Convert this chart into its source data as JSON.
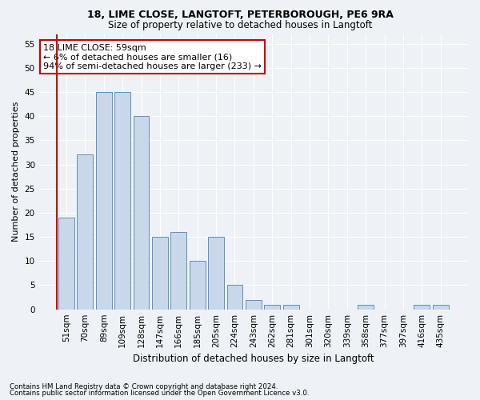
{
  "title1": "18, LIME CLOSE, LANGTOFT, PETERBOROUGH, PE6 9RA",
  "title2": "Size of property relative to detached houses in Langtoft",
  "xlabel": "Distribution of detached houses by size in Langtoft",
  "ylabel": "Number of detached properties",
  "categories": [
    "51sqm",
    "70sqm",
    "89sqm",
    "109sqm",
    "128sqm",
    "147sqm",
    "166sqm",
    "185sqm",
    "205sqm",
    "224sqm",
    "243sqm",
    "262sqm",
    "281sqm",
    "301sqm",
    "320sqm",
    "339sqm",
    "358sqm",
    "377sqm",
    "397sqm",
    "416sqm",
    "435sqm"
  ],
  "values": [
    19,
    32,
    45,
    45,
    40,
    15,
    16,
    10,
    15,
    5,
    2,
    1,
    1,
    0,
    0,
    0,
    1,
    0,
    0,
    1,
    1
  ],
  "bar_color": "#c8d8ea",
  "bar_edge_color": "#6090b8",
  "annotation_text_line1": "18 LIME CLOSE: 59sqm",
  "annotation_text_line2": "← 6% of detached houses are smaller (16)",
  "annotation_text_line3": "94% of semi-detached houses are larger (233) →",
  "annotation_box_color": "#ffffff",
  "annotation_box_edge_color": "#cc0000",
  "vline_color": "#cc0000",
  "ylim": [
    0,
    57
  ],
  "yticks": [
    0,
    5,
    10,
    15,
    20,
    25,
    30,
    35,
    40,
    45,
    50,
    55
  ],
  "background_color": "#eef2f6",
  "grid_color": "#ffffff",
  "footnote1": "Contains HM Land Registry data © Crown copyright and database right 2024.",
  "footnote2": "Contains public sector information licensed under the Open Government Licence v3.0.",
  "title1_fontsize": 9,
  "title2_fontsize": 8.5,
  "ylabel_fontsize": 8,
  "xlabel_fontsize": 8.5,
  "tick_fontsize": 7.5,
  "annot_fontsize": 8
}
